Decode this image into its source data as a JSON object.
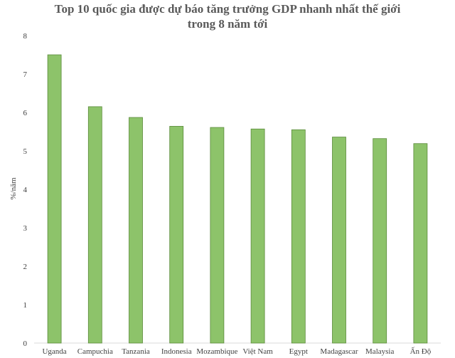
{
  "chart_data": {
    "type": "bar",
    "title_lines": [
      "Top 10 quốc gia được dự báo tăng trưởng GDP nhanh nhất thế giới",
      "trong 8 năm tới"
    ],
    "xlabel": "",
    "ylabel": "%/năm",
    "ylim": [
      0,
      8
    ],
    "yticks": [
      "0",
      "1",
      "2",
      "3",
      "4",
      "5",
      "6",
      "7",
      "8"
    ],
    "grid": false,
    "legend": "none",
    "bar_color": "#8dc36a",
    "bar_border_color": "#5a8a3a",
    "categories": [
      "Uganda",
      "Campuchia",
      "Tanzania",
      "Indonesia",
      "Mozambique",
      "Việt Nam",
      "Egypt",
      "Madagascar",
      "Malaysia",
      "Ấn Độ"
    ],
    "values": [
      7.5,
      6.15,
      5.87,
      5.64,
      5.61,
      5.57,
      5.55,
      5.36,
      5.32,
      5.19
    ]
  }
}
